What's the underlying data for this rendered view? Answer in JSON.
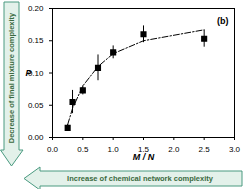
{
  "chart_data": {
    "type": "scatter",
    "x_label": "M / N",
    "y_label": "P",
    "annotation": "(b)",
    "arrow_labels": {
      "vertical": "Decrease of final mixture complexity",
      "horizontal": "Increase of chemical network complexity"
    },
    "x": [
      0.25,
      0.33,
      0.5,
      0.75,
      1.0,
      1.5,
      2.5
    ],
    "series": [
      {
        "type": "scatter",
        "marker": "square",
        "color": "#000000",
        "values": [
          0.015,
          0.055,
          0.073,
          0.108,
          0.132,
          0.16,
          0.153
        ],
        "errors": [
          0.005,
          0.018,
          0.007,
          0.02,
          0.01,
          0.013,
          0.013
        ]
      },
      {
        "type": "line",
        "line_style": "dashdot",
        "color": "#000000",
        "values": [
          0.02,
          0.045,
          0.08,
          0.11,
          0.13,
          0.15,
          0.167
        ]
      }
    ],
    "xlim": [
      0,
      3
    ],
    "xticks": [
      {
        "value": 0,
        "label": "0.0"
      },
      0.5,
      {
        "value": 1,
        "label": "1.0"
      },
      1.5,
      {
        "value": 2,
        "label": "2.0"
      },
      2.5,
      {
        "value": 3,
        "label": "3.0"
      }
    ],
    "ylim": [
      0,
      0.2
    ],
    "yticks": [
      {
        "value": 0,
        "label": "0.00"
      },
      0.05,
      {
        "value": 0.1,
        "label": "0.10"
      },
      0.15,
      {
        "value": 0.2,
        "label": "0.20"
      }
    ],
    "grid": false
  }
}
